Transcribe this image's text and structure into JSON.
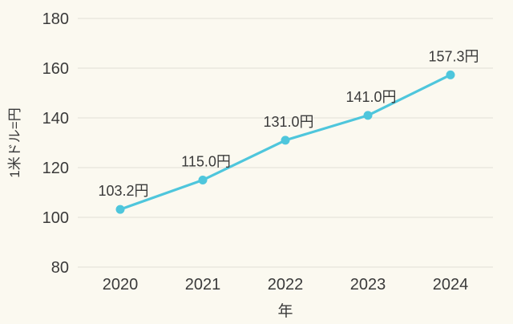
{
  "chart_data": {
    "type": "line",
    "title": "",
    "x": [
      2020,
      2021,
      2022,
      2023,
      2024
    ],
    "values": [
      103.2,
      115.0,
      131.0,
      141.0,
      157.3
    ],
    "point_labels": [
      "103.2円",
      "115.0円",
      "131.0円",
      "141.0円",
      "157.3円"
    ],
    "xlabel": "年",
    "ylabel": "1米ドル=円",
    "ylim": [
      80,
      180
    ],
    "yticks": [
      80,
      100,
      120,
      140,
      160,
      180
    ],
    "grid": true,
    "legend": "none",
    "colors": {
      "line": "#4ec6dc",
      "marker": "#4ec6dc",
      "background": "#fbf9f0",
      "gridline": "#e6e4db",
      "text": "#3a3a3a"
    }
  }
}
